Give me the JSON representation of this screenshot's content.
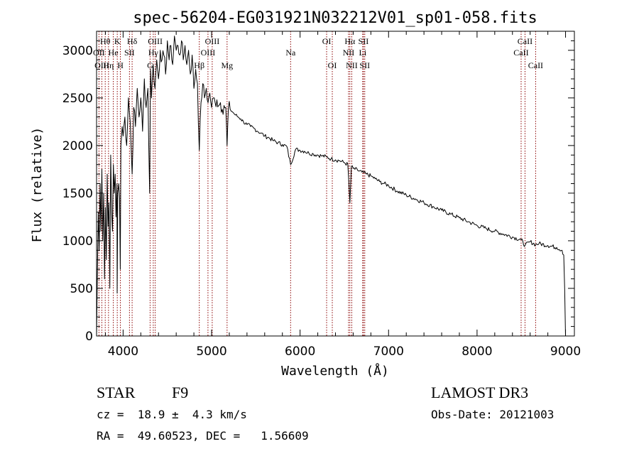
{
  "chart_data": {
    "type": "line",
    "title": "spec-56204-EG031921N032212V01_sp01-058.fits",
    "xlabel": "Wavelength (Å)",
    "ylabel": "Flux (relative)",
    "xlim": [
      3700,
      9100
    ],
    "ylim": [
      0,
      3200
    ],
    "xticks": [
      4000,
      5000,
      6000,
      7000,
      8000,
      9000
    ],
    "yticks": [
      0,
      500,
      1000,
      1500,
      2000,
      2500,
      3000
    ],
    "x_minor_step": 200,
    "y_minor_step": 100,
    "series": [
      {
        "name": "spectrum",
        "x": [
          3700,
          3710,
          3720,
          3730,
          3740,
          3750,
          3760,
          3770,
          3780,
          3790,
          3800,
          3810,
          3820,
          3830,
          3840,
          3850,
          3860,
          3870,
          3880,
          3890,
          3900,
          3910,
          3920,
          3930,
          3933,
          3940,
          3950,
          3960,
          3968,
          3975,
          3990,
          4000,
          4020,
          4040,
          4060,
          4080,
          4102,
          4120,
          4140,
          4160,
          4180,
          4200,
          4220,
          4240,
          4260,
          4280,
          4300,
          4310,
          4320,
          4340,
          4360,
          4380,
          4400,
          4420,
          4440,
          4460,
          4480,
          4500,
          4520,
          4540,
          4560,
          4580,
          4600,
          4620,
          4640,
          4660,
          4680,
          4700,
          4720,
          4740,
          4760,
          4780,
          4800,
          4820,
          4840,
          4861,
          4880,
          4900,
          4920,
          4940,
          4960,
          4980,
          5000,
          5020,
          5040,
          5060,
          5080,
          5100,
          5120,
          5140,
          5160,
          5175,
          5190,
          5210,
          5240,
          5270,
          5300,
          5330,
          5360,
          5400,
          5440,
          5480,
          5520,
          5560,
          5600,
          5650,
          5700,
          5750,
          5800,
          5850,
          5893,
          5950,
          6000,
          6050,
          6100,
          6150,
          6200,
          6250,
          6300,
          6350,
          6400,
          6450,
          6500,
          6540,
          6563,
          6580,
          6600,
          6650,
          6700,
          6750,
          6800,
          6850,
          6900,
          6950,
          7000,
          7100,
          7200,
          7300,
          7400,
          7500,
          7600,
          7700,
          7800,
          7900,
          8000,
          8100,
          8200,
          8300,
          8400,
          8498,
          8542,
          8600,
          8662,
          8700,
          8800,
          8900,
          8960,
          8980,
          8990,
          9000
        ],
        "y": [
          0,
          700,
          1300,
          900,
          1600,
          1100,
          1750,
          1000,
          1500,
          600,
          1350,
          800,
          1700,
          1150,
          1400,
          500,
          1900,
          1300,
          1100,
          1800,
          1500,
          1700,
          1250,
          1600,
          450,
          1500,
          1600,
          1450,
          700,
          2000,
          2200,
          2100,
          2300,
          2000,
          2500,
          2250,
          1700,
          2400,
          2200,
          2600,
          2300,
          2500,
          2150,
          2700,
          2400,
          2600,
          1500,
          2800,
          2500,
          2850,
          2600,
          2900,
          2700,
          3000,
          2900,
          2950,
          2750,
          3100,
          2900,
          3050,
          2850,
          3150,
          3000,
          3050,
          2950,
          3100,
          2900,
          3050,
          2850,
          3000,
          2750,
          2950,
          2600,
          2800,
          2650,
          1950,
          2450,
          2650,
          2500,
          2600,
          2450,
          2550,
          2400,
          2500,
          2450,
          2480,
          2420,
          2450,
          2380,
          2420,
          2400,
          2000,
          2400,
          2380,
          2350,
          2320,
          2300,
          2280,
          2250,
          2220,
          2200,
          2180,
          2150,
          2130,
          2100,
          2080,
          2050,
          2030,
          2010,
          1990,
          1800,
          1960,
          1950,
          1940,
          1920,
          1910,
          1900,
          1890,
          1880,
          1860,
          1850,
          1840,
          1820,
          1800,
          1400,
          1780,
          1760,
          1740,
          1720,
          1700,
          1680,
          1650,
          1620,
          1600,
          1580,
          1520,
          1480,
          1440,
          1400,
          1360,
          1320,
          1280,
          1240,
          1200,
          1160,
          1130,
          1100,
          1070,
          1040,
          1010,
          950,
          990,
          960,
          970,
          950,
          930,
          900,
          850,
          500,
          0
        ]
      }
    ],
    "line_groups": [
      {
        "color": "#8b0000",
        "labels": [
          {
            "text": "Hθ",
            "wl": 3798,
            "row": 1
          },
          {
            "text": "OII",
            "wl": 3727,
            "row": 2
          },
          {
            "text": "OIII",
            "wl": 3760,
            "row": 3
          },
          {
            "text": "K",
            "wl": 3934,
            "row": 1
          },
          {
            "text": "He",
            "wl": 3889,
            "row": 2
          },
          {
            "text": "Hη",
            "wl": 3835,
            "row": 3
          },
          {
            "text": "Hδ",
            "wl": 4102,
            "row": 1
          },
          {
            "text": "SII",
            "wl": 4072,
            "row": 2
          },
          {
            "text": "H",
            "wl": 3969,
            "row": 3
          },
          {
            "text": "OIII",
            "wl": 4363,
            "row": 1
          },
          {
            "text": "Hγ",
            "wl": 4341,
            "row": 2
          },
          {
            "text": "G",
            "wl": 4305,
            "row": 3
          },
          {
            "text": "OIII",
            "wl": 5007,
            "row": 1
          },
          {
            "text": "OIII",
            "wl": 4959,
            "row": 2
          },
          {
            "text": "Hβ",
            "wl": 4861,
            "row": 3
          },
          {
            "text": "Mg",
            "wl": 5175,
            "row": 3
          },
          {
            "text": "Na",
            "wl": 5893,
            "row": 2
          },
          {
            "text": "OI",
            "wl": 6300,
            "row": 1
          },
          {
            "text": "OI",
            "wl": 6364,
            "row": 3
          },
          {
            "text": "Hα",
            "wl": 6563,
            "row": 1
          },
          {
            "text": "SII",
            "wl": 6716,
            "row": 1
          },
          {
            "text": "NII",
            "wl": 6548,
            "row": 2
          },
          {
            "text": "Li",
            "wl": 6708,
            "row": 2
          },
          {
            "text": "NII",
            "wl": 6584,
            "row": 3
          },
          {
            "text": "SII",
            "wl": 6731,
            "row": 3
          },
          {
            "text": "CaII",
            "wl": 8542,
            "row": 1
          },
          {
            "text": "CaII",
            "wl": 8498,
            "row": 2
          },
          {
            "text": "CaII",
            "wl": 8662,
            "row": 3
          }
        ]
      }
    ]
  },
  "info": {
    "class_label": "STAR",
    "subclass": "F9",
    "survey": "LAMOST DR3",
    "redshift": "cz =  18.9 ±  4.3 km/s",
    "obs_date": "Obs-Date: 20121003",
    "coords": "RA =  49.60523, DEC =   1.56609"
  }
}
